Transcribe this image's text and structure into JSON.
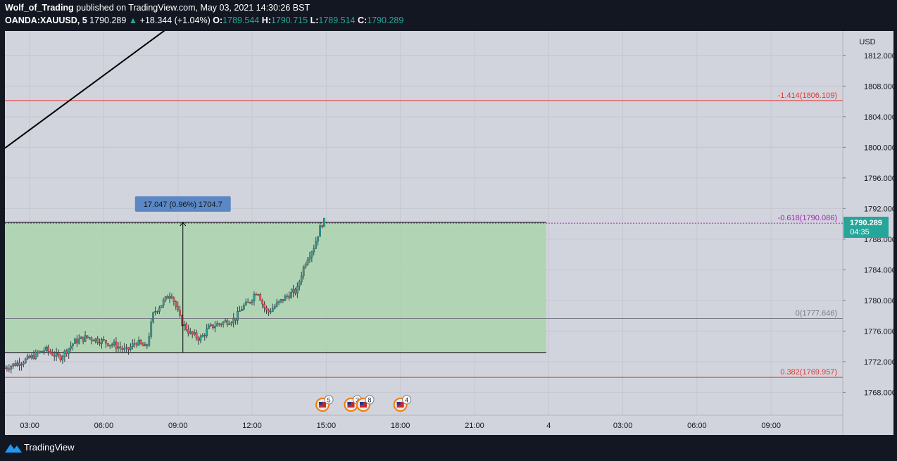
{
  "header": {
    "author": "Wolf_of_Trading",
    "published_text": "published on TradingView.com, May 03, 2021 14:30:26 BST",
    "symbol": "OANDA:XAUUSD, 5",
    "last": "1790.289",
    "change": "+18.344 (+1.04%)",
    "o_label": "O:",
    "o_value": "1789.544",
    "h_label": "H:",
    "h_value": "1790.715",
    "l_label": "L:",
    "l_value": "1789.514",
    "c_label": "C:",
    "c_value": "1790.289"
  },
  "footer": {
    "brand": "TradingView"
  },
  "colors": {
    "background": "#d1d4dc",
    "up": "#26a69a",
    "down": "#ef5350",
    "box_fill": "#a5d6a7",
    "fib_red": "#e53935",
    "fib_purple": "#9c27b0",
    "fib_gray": "#787b86",
    "measure_label": "#5b87c5",
    "price_tag": "#26a69a"
  },
  "chart_data": {
    "type": "candlestick",
    "currency_label": "USD",
    "y_ticks": [
      "1812.000",
      "1808.000",
      "1804.000",
      "1800.000",
      "1796.000",
      "1792.000",
      "1788.000",
      "1784.000",
      "1780.000",
      "1776.000",
      "1772.000",
      "1768.000"
    ],
    "ylim": [
      1765.0,
      1815.2
    ],
    "x_ticks": [
      {
        "label": "03:00",
        "hours": 3
      },
      {
        "label": "06:00",
        "hours": 6
      },
      {
        "label": "09:00",
        "hours": 9
      },
      {
        "label": "12:00",
        "hours": 12
      },
      {
        "label": "15:00",
        "hours": 15
      },
      {
        "label": "18:00",
        "hours": 18
      },
      {
        "label": "21:00",
        "hours": 21
      },
      {
        "label": "4",
        "hours": 24
      },
      {
        "label": "03:00",
        "hours": 27
      },
      {
        "label": "06:00",
        "hours": 30
      },
      {
        "label": "09:00",
        "hours": 33
      }
    ],
    "xlim_hours": [
      2.0,
      35.9
    ],
    "price_path": [
      [
        2.0,
        1771.1
      ],
      [
        3.0,
        1772.3
      ],
      [
        3.7,
        1773.6
      ],
      [
        4.3,
        1772.5
      ],
      [
        4.9,
        1774.6
      ],
      [
        5.4,
        1775.2
      ],
      [
        5.9,
        1774.8
      ],
      [
        6.5,
        1774.2
      ],
      [
        7.0,
        1773.4
      ],
      [
        7.4,
        1774.6
      ],
      [
        7.8,
        1773.7
      ],
      [
        8.1,
        1778.4
      ],
      [
        8.6,
        1780.2
      ],
      [
        8.8,
        1781.1
      ],
      [
        9.2,
        1777.3
      ],
      [
        9.6,
        1775.6
      ],
      [
        10.0,
        1775.0
      ],
      [
        10.3,
        1776.3
      ],
      [
        10.6,
        1776.8
      ],
      [
        11.0,
        1777.2
      ],
      [
        11.4,
        1777.6
      ],
      [
        11.7,
        1779.2
      ],
      [
        11.9,
        1779.5
      ],
      [
        12.3,
        1781.4
      ],
      [
        12.5,
        1779.6
      ],
      [
        12.7,
        1778.4
      ],
      [
        13.1,
        1779.5
      ],
      [
        13.5,
        1780.6
      ],
      [
        13.9,
        1781.3
      ],
      [
        14.1,
        1783.7
      ],
      [
        14.3,
        1785.5
      ],
      [
        14.6,
        1787.1
      ],
      [
        14.8,
        1789.2
      ],
      [
        14.95,
        1790.289
      ]
    ],
    "last_price": "1790.289",
    "countdown": "04:35",
    "fib_levels": [
      {
        "label": "-1.414(1806.109)",
        "value": 1806.109,
        "color": "#e53935"
      },
      {
        "label": "-0.618(1790.086)",
        "value": 1790.086,
        "color": "#9c27b0"
      },
      {
        "label": "0(1777.646)",
        "value": 1777.646,
        "color": "#787b86"
      },
      {
        "label": "0.382(1769.957)",
        "value": 1769.957,
        "color": "#e53935"
      }
    ],
    "box": {
      "top": 1790.2,
      "bottom": 1773.2,
      "start_hours": 2.0,
      "end_hours": 23.9
    },
    "measure": {
      "label": "17.047 (0.96%) 1704.7",
      "from": 1773.2,
      "to": 1790.2,
      "at_hours": 9.2
    },
    "trendline": [
      [
        2.0,
        1799.9
      ],
      [
        9.4,
        1817.5
      ]
    ],
    "event_flags": [
      {
        "hours": 14.85,
        "count": "5"
      },
      {
        "hours": 16.0,
        "count": "3"
      },
      {
        "hours": 16.5,
        "count": "8"
      },
      {
        "hours": 18.0,
        "count": "4"
      }
    ]
  }
}
